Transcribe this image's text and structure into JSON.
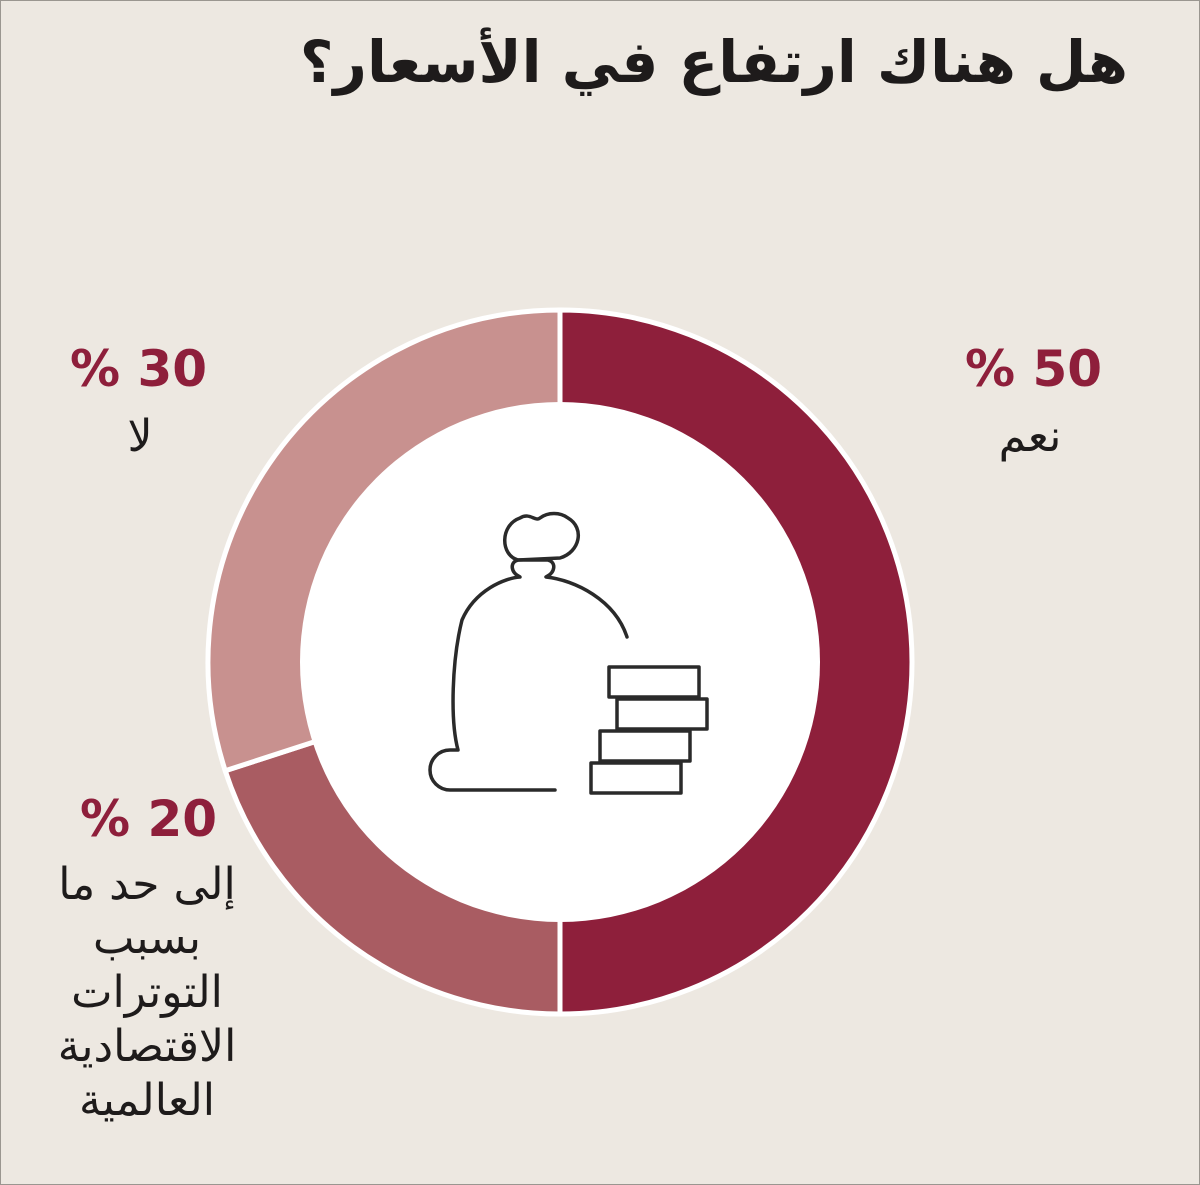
{
  "chart_data": {
    "type": "pie",
    "donut": true,
    "title": "هل هناك ارتفاع في الأسعار؟",
    "slices": [
      {
        "key": "yes",
        "pct_label": "50 %",
        "label": "نعم",
        "value": 50,
        "color": "#8e1f3b"
      },
      {
        "key": "somewhat",
        "pct_label": "20 %",
        "label": "إلى حد ما بسبب التوترات الاقتصادية العالمية",
        "value": 20,
        "color": "#a95c62"
      },
      {
        "key": "no",
        "pct_label": "30 %",
        "label": "لا",
        "value": 30,
        "color": "#c8918f"
      }
    ],
    "center_icon": "money-bag-with-coins-icon",
    "background": "#ede8e1"
  }
}
